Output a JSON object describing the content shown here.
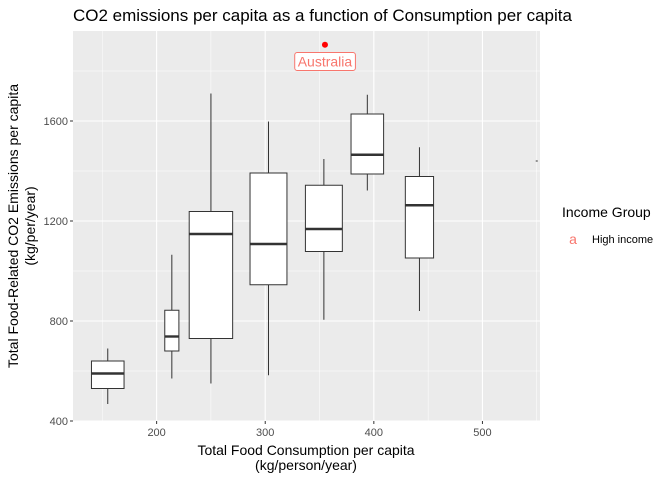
{
  "chart_data": {
    "type": "boxplot",
    "title": "CO2 emissions per capita as a function of Consumption per capita",
    "xlabel": [
      "Total Food Consumption per capita",
      "(kg/person/year)"
    ],
    "ylabel": [
      "Total Food-Related CO2 Emissions per capita",
      "(kg/per/year)"
    ],
    "xlim": [
      123,
      553
    ],
    "ylim": [
      400,
      1960
    ],
    "xticks": [
      200,
      300,
      400,
      500
    ],
    "yticks": [
      400,
      800,
      1200,
      1600
    ],
    "grid": true,
    "boxes": [
      {
        "x": 155,
        "width": 30,
        "min": 468,
        "q1": 530,
        "median": 590,
        "q3": 640,
        "max": 690
      },
      {
        "x": 214,
        "width": 13,
        "min": 570,
        "q1": 680,
        "median": 738,
        "q3": 843,
        "max": 1065
      },
      {
        "x": 250,
        "width": 40,
        "min": 550,
        "q1": 730,
        "median": 1148,
        "q3": 1238,
        "max": 1710
      },
      {
        "x": 303,
        "width": 34,
        "min": 583,
        "q1": 945,
        "median": 1108,
        "q3": 1392,
        "max": 1598
      },
      {
        "x": 354,
        "width": 34,
        "min": 805,
        "q1": 1078,
        "median": 1168,
        "q3": 1343,
        "max": 1448
      },
      {
        "x": 394,
        "width": 30,
        "min": 1322,
        "q1": 1388,
        "median": 1465,
        "q3": 1628,
        "max": 1705
      },
      {
        "x": 442,
        "width": 26,
        "min": 840,
        "q1": 1052,
        "median": 1263,
        "q3": 1378,
        "max": 1495
      }
    ],
    "stray_point": {
      "x": 550,
      "y": 1440
    },
    "highlight_point": {
      "x": 355,
      "y": 1905,
      "color": "#ff0000"
    },
    "annotation": {
      "text": "Australia",
      "x": 355,
      "y": 1838,
      "color": "#f8766d"
    },
    "legend": {
      "title": "Income Group",
      "placement": "right",
      "items": [
        {
          "key": "a",
          "label": "High income",
          "color": "#f8766d"
        }
      ]
    }
  }
}
